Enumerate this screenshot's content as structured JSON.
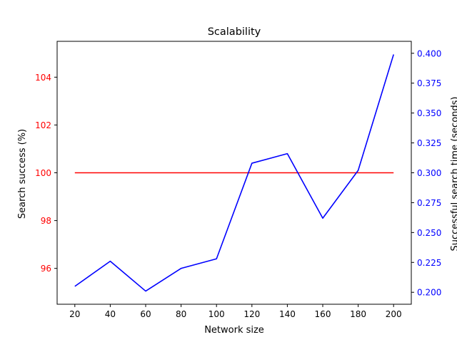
{
  "chart_data": {
    "type": "line",
    "title": "Scalability",
    "xlabel": "Network size",
    "ylabel_left": "Search success (%)",
    "ylabel_right": "Successful search time (seconds)",
    "x": [
      20,
      40,
      60,
      80,
      100,
      120,
      140,
      160,
      180,
      200
    ],
    "xlim": [
      10,
      210
    ],
    "ylim_left": [
      94.5,
      105.5
    ],
    "ylim_right": [
      0.19,
      0.41
    ],
    "left_ticks": [
      96,
      98,
      100,
      102,
      104
    ],
    "right_ticks": [
      0.2,
      0.225,
      0.25,
      0.275,
      0.3,
      0.325,
      0.35,
      0.375,
      0.4
    ],
    "grid": false,
    "series": [
      {
        "axis": "left",
        "color": "#ff0000",
        "values": [
          100,
          100,
          100,
          100,
          100,
          100,
          100,
          100,
          100,
          100
        ]
      },
      {
        "axis": "right",
        "color": "#0000ff",
        "values": [
          0.205,
          0.226,
          0.201,
          0.22,
          0.228,
          0.308,
          0.316,
          0.262,
          0.302,
          0.399
        ]
      }
    ],
    "left_tick_color": "#ff0000",
    "right_tick_color": "#0000ff"
  }
}
